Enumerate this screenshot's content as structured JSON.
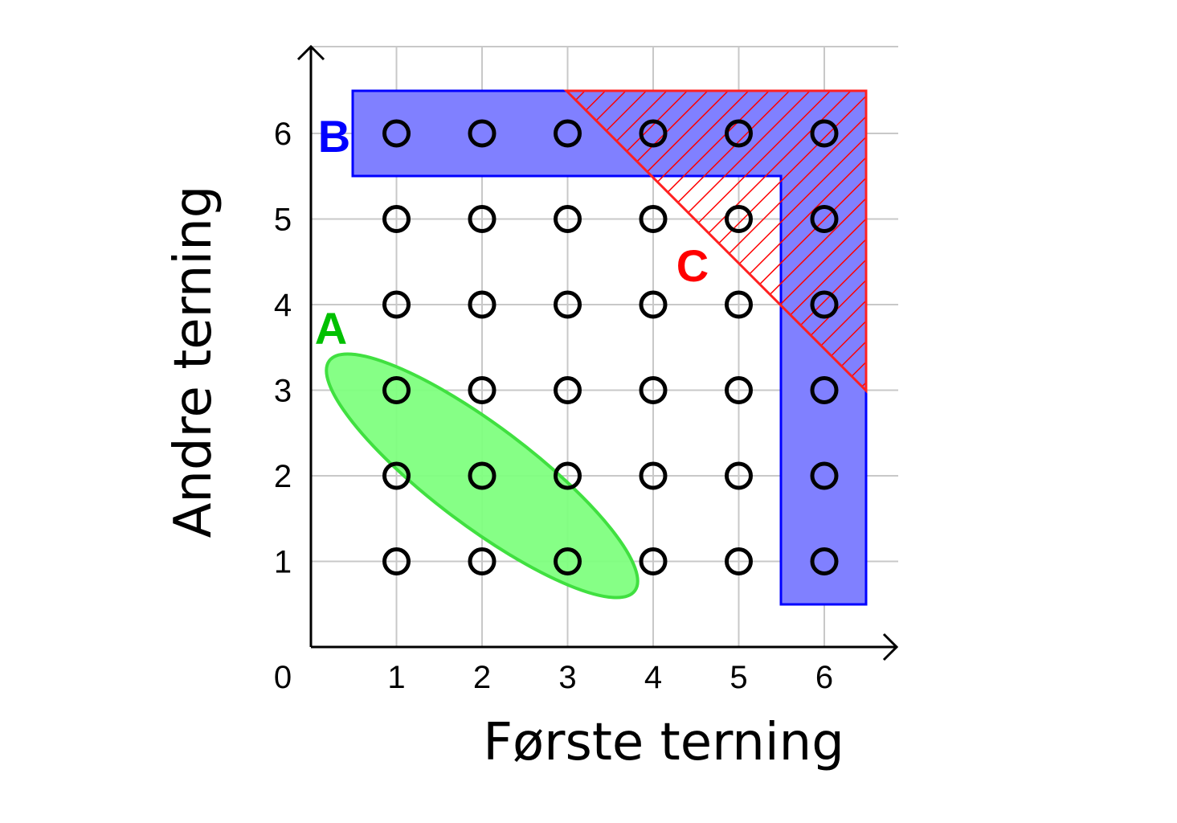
{
  "diagram": {
    "x_axis_label": "Første terning",
    "y_axis_label": "Andre terning",
    "origin_label": "0",
    "x_ticks": [
      "1",
      "2",
      "3",
      "4",
      "5",
      "6"
    ],
    "y_ticks": [
      "1",
      "2",
      "3",
      "4",
      "5",
      "6"
    ],
    "outcomes": {
      "first_values": [
        1,
        2,
        3,
        4,
        5,
        6
      ],
      "second_values": [
        1,
        2,
        3,
        4,
        5,
        6
      ]
    },
    "events": [
      {
        "id": "A",
        "label": "A",
        "color": "#00c000",
        "fill": "#80ff80"
      },
      {
        "id": "B",
        "label": "B",
        "color": "#0000ff",
        "fill": "#8080ff"
      },
      {
        "id": "C",
        "label": "C",
        "color": "#ff0000"
      }
    ],
    "colors": {
      "grid": "#c8c8c8",
      "axis": "#000000",
      "point": "#000000"
    }
  }
}
